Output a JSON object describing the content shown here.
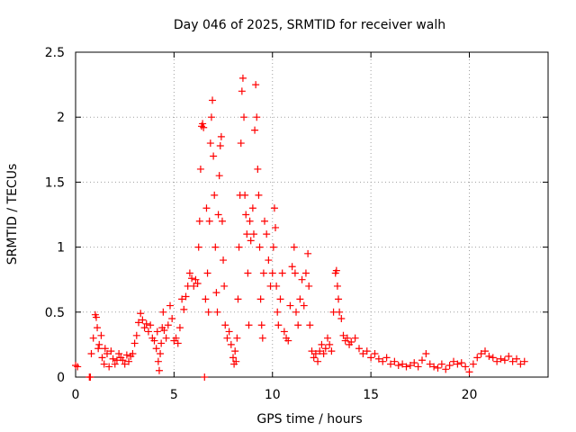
{
  "chart_data": {
    "type": "scatter",
    "title": "Day 046 of 2025, SRMTID for receiver walh",
    "xlabel": "GPS time / hours",
    "ylabel": "SRMTID / TECUs",
    "xlim": [
      0,
      24
    ],
    "ylim": [
      0,
      2.5
    ],
    "xticks": [
      0,
      5,
      10,
      15,
      20
    ],
    "yticks": [
      0,
      0.5,
      1,
      1.5,
      2,
      2.5
    ],
    "xtick_labels": [
      "0",
      "5",
      "10",
      "15",
      "20"
    ],
    "ytick_labels": [
      "0",
      "0.5",
      "1",
      "1.5",
      "2",
      "2.5"
    ],
    "grid": true,
    "marker": "+",
    "series": [
      {
        "name": "SRMTID",
        "color": "#ff0000",
        "points": [
          [
            0.0,
            0.09
          ],
          [
            0.1,
            0.08
          ],
          [
            0.7,
            0.0
          ],
          [
            0.75,
            0.0
          ],
          [
            0.8,
            0.18
          ],
          [
            0.9,
            0.3
          ],
          [
            1.0,
            0.48
          ],
          [
            1.05,
            0.46
          ],
          [
            1.1,
            0.38
          ],
          [
            1.15,
            0.22
          ],
          [
            1.2,
            0.25
          ],
          [
            1.3,
            0.32
          ],
          [
            1.35,
            0.15
          ],
          [
            1.45,
            0.1
          ],
          [
            1.5,
            0.22
          ],
          [
            1.6,
            0.18
          ],
          [
            1.7,
            0.08
          ],
          [
            1.8,
            0.2
          ],
          [
            1.9,
            0.14
          ],
          [
            2.0,
            0.1
          ],
          [
            2.1,
            0.13
          ],
          [
            2.2,
            0.18
          ],
          [
            2.3,
            0.15
          ],
          [
            2.4,
            0.13
          ],
          [
            2.5,
            0.1
          ],
          [
            2.6,
            0.17
          ],
          [
            2.7,
            0.12
          ],
          [
            2.8,
            0.16
          ],
          [
            2.9,
            0.18
          ],
          [
            3.0,
            0.26
          ],
          [
            3.1,
            0.32
          ],
          [
            3.2,
            0.42
          ],
          [
            3.3,
            0.49
          ],
          [
            3.4,
            0.44
          ],
          [
            3.5,
            0.38
          ],
          [
            3.6,
            0.41
          ],
          [
            3.7,
            0.35
          ],
          [
            3.8,
            0.4
          ],
          [
            3.9,
            0.3
          ],
          [
            4.0,
            0.28
          ],
          [
            4.1,
            0.22
          ],
          [
            4.15,
            0.35
          ],
          [
            4.2,
            0.12
          ],
          [
            4.25,
            0.05
          ],
          [
            4.3,
            0.18
          ],
          [
            4.35,
            0.26
          ],
          [
            4.4,
            0.38
          ],
          [
            4.45,
            0.5
          ],
          [
            4.5,
            0.36
          ],
          [
            4.6,
            0.3
          ],
          [
            4.7,
            0.4
          ],
          [
            4.8,
            0.55
          ],
          [
            4.9,
            0.45
          ],
          [
            5.0,
            0.28
          ],
          [
            5.1,
            0.3
          ],
          [
            5.2,
            0.26
          ],
          [
            5.3,
            0.38
          ],
          [
            5.4,
            0.6
          ],
          [
            5.5,
            0.52
          ],
          [
            5.6,
            0.62
          ],
          [
            5.7,
            0.7
          ],
          [
            5.8,
            0.8
          ],
          [
            5.9,
            0.76
          ],
          [
            6.0,
            0.7
          ],
          [
            6.1,
            0.75
          ],
          [
            6.2,
            0.72
          ],
          [
            6.25,
            1.0
          ],
          [
            6.3,
            1.2
          ],
          [
            6.35,
            1.6
          ],
          [
            6.4,
            1.93
          ],
          [
            6.45,
            1.95
          ],
          [
            6.5,
            1.92
          ],
          [
            6.55,
            0.0
          ],
          [
            6.6,
            0.6
          ],
          [
            6.65,
            1.3
          ],
          [
            6.7,
            0.8
          ],
          [
            6.75,
            0.5
          ],
          [
            6.8,
            1.2
          ],
          [
            6.85,
            1.8
          ],
          [
            6.9,
            2.0
          ],
          [
            6.95,
            2.13
          ],
          [
            7.0,
            1.7
          ],
          [
            7.05,
            1.4
          ],
          [
            7.1,
            1.0
          ],
          [
            7.15,
            0.65
          ],
          [
            7.2,
            0.5
          ],
          [
            7.25,
            1.25
          ],
          [
            7.3,
            1.55
          ],
          [
            7.35,
            1.78
          ],
          [
            7.4,
            1.85
          ],
          [
            7.45,
            1.2
          ],
          [
            7.5,
            0.9
          ],
          [
            7.55,
            0.7
          ],
          [
            7.6,
            0.4
          ],
          [
            7.7,
            0.3
          ],
          [
            7.8,
            0.35
          ],
          [
            7.9,
            0.25
          ],
          [
            8.0,
            0.15
          ],
          [
            8.05,
            0.1
          ],
          [
            8.1,
            0.2
          ],
          [
            8.15,
            0.12
          ],
          [
            8.2,
            0.3
          ],
          [
            8.25,
            0.6
          ],
          [
            8.3,
            1.0
          ],
          [
            8.35,
            1.4
          ],
          [
            8.4,
            1.8
          ],
          [
            8.45,
            2.2
          ],
          [
            8.5,
            2.3
          ],
          [
            8.55,
            2.0
          ],
          [
            8.6,
            1.4
          ],
          [
            8.65,
            1.25
          ],
          [
            8.7,
            1.1
          ],
          [
            8.75,
            0.8
          ],
          [
            8.8,
            0.4
          ],
          [
            8.85,
            1.2
          ],
          [
            8.9,
            1.05
          ],
          [
            9.0,
            1.3
          ],
          [
            9.05,
            1.1
          ],
          [
            9.1,
            1.9
          ],
          [
            9.15,
            2.25
          ],
          [
            9.2,
            2.0
          ],
          [
            9.25,
            1.6
          ],
          [
            9.3,
            1.4
          ],
          [
            9.35,
            1.0
          ],
          [
            9.4,
            0.6
          ],
          [
            9.45,
            0.4
          ],
          [
            9.5,
            0.3
          ],
          [
            9.55,
            0.8
          ],
          [
            9.6,
            1.2
          ],
          [
            9.7,
            1.1
          ],
          [
            9.8,
            0.9
          ],
          [
            9.9,
            0.7
          ],
          [
            10.0,
            0.8
          ],
          [
            10.05,
            1.0
          ],
          [
            10.1,
            1.3
          ],
          [
            10.15,
            1.15
          ],
          [
            10.2,
            0.7
          ],
          [
            10.25,
            0.5
          ],
          [
            10.3,
            0.4
          ],
          [
            10.4,
            0.6
          ],
          [
            10.5,
            0.8
          ],
          [
            10.6,
            0.35
          ],
          [
            10.7,
            0.3
          ],
          [
            10.8,
            0.28
          ],
          [
            10.9,
            0.55
          ],
          [
            11.0,
            0.85
          ],
          [
            11.1,
            1.0
          ],
          [
            11.15,
            0.8
          ],
          [
            11.2,
            0.5
          ],
          [
            11.3,
            0.4
          ],
          [
            11.4,
            0.6
          ],
          [
            11.5,
            0.75
          ],
          [
            11.6,
            0.55
          ],
          [
            11.7,
            0.8
          ],
          [
            11.8,
            0.95
          ],
          [
            11.85,
            0.7
          ],
          [
            11.9,
            0.4
          ],
          [
            12.0,
            0.2
          ],
          [
            12.1,
            0.15
          ],
          [
            12.2,
            0.18
          ],
          [
            12.3,
            0.12
          ],
          [
            12.4,
            0.2
          ],
          [
            12.5,
            0.25
          ],
          [
            12.6,
            0.18
          ],
          [
            12.7,
            0.22
          ],
          [
            12.8,
            0.3
          ],
          [
            12.9,
            0.25
          ],
          [
            13.0,
            0.2
          ],
          [
            13.1,
            0.5
          ],
          [
            13.2,
            0.8
          ],
          [
            13.25,
            0.82
          ],
          [
            13.3,
            0.7
          ],
          [
            13.35,
            0.6
          ],
          [
            13.4,
            0.5
          ],
          [
            13.5,
            0.45
          ],
          [
            13.6,
            0.32
          ],
          [
            13.7,
            0.28
          ],
          [
            13.8,
            0.3
          ],
          [
            13.9,
            0.25
          ],
          [
            14.0,
            0.27
          ],
          [
            14.2,
            0.3
          ],
          [
            14.4,
            0.22
          ],
          [
            14.6,
            0.18
          ],
          [
            14.8,
            0.2
          ],
          [
            15.0,
            0.15
          ],
          [
            15.2,
            0.18
          ],
          [
            15.4,
            0.14
          ],
          [
            15.6,
            0.12
          ],
          [
            15.8,
            0.15
          ],
          [
            16.0,
            0.1
          ],
          [
            16.2,
            0.12
          ],
          [
            16.4,
            0.09
          ],
          [
            16.6,
            0.1
          ],
          [
            16.8,
            0.08
          ],
          [
            17.0,
            0.09
          ],
          [
            17.2,
            0.11
          ],
          [
            17.4,
            0.08
          ],
          [
            17.6,
            0.13
          ],
          [
            17.8,
            0.18
          ],
          [
            18.0,
            0.1
          ],
          [
            18.2,
            0.08
          ],
          [
            18.4,
            0.07
          ],
          [
            18.6,
            0.1
          ],
          [
            18.8,
            0.06
          ],
          [
            19.0,
            0.09
          ],
          [
            19.2,
            0.12
          ],
          [
            19.4,
            0.1
          ],
          [
            19.6,
            0.11
          ],
          [
            19.8,
            0.08
          ],
          [
            20.0,
            0.04
          ],
          [
            20.2,
            0.1
          ],
          [
            20.4,
            0.15
          ],
          [
            20.6,
            0.18
          ],
          [
            20.8,
            0.2
          ],
          [
            21.0,
            0.16
          ],
          [
            21.2,
            0.15
          ],
          [
            21.4,
            0.12
          ],
          [
            21.6,
            0.14
          ],
          [
            21.8,
            0.13
          ],
          [
            22.0,
            0.16
          ],
          [
            22.2,
            0.12
          ],
          [
            22.4,
            0.14
          ],
          [
            22.6,
            0.1
          ],
          [
            22.8,
            0.12
          ]
        ]
      }
    ]
  }
}
